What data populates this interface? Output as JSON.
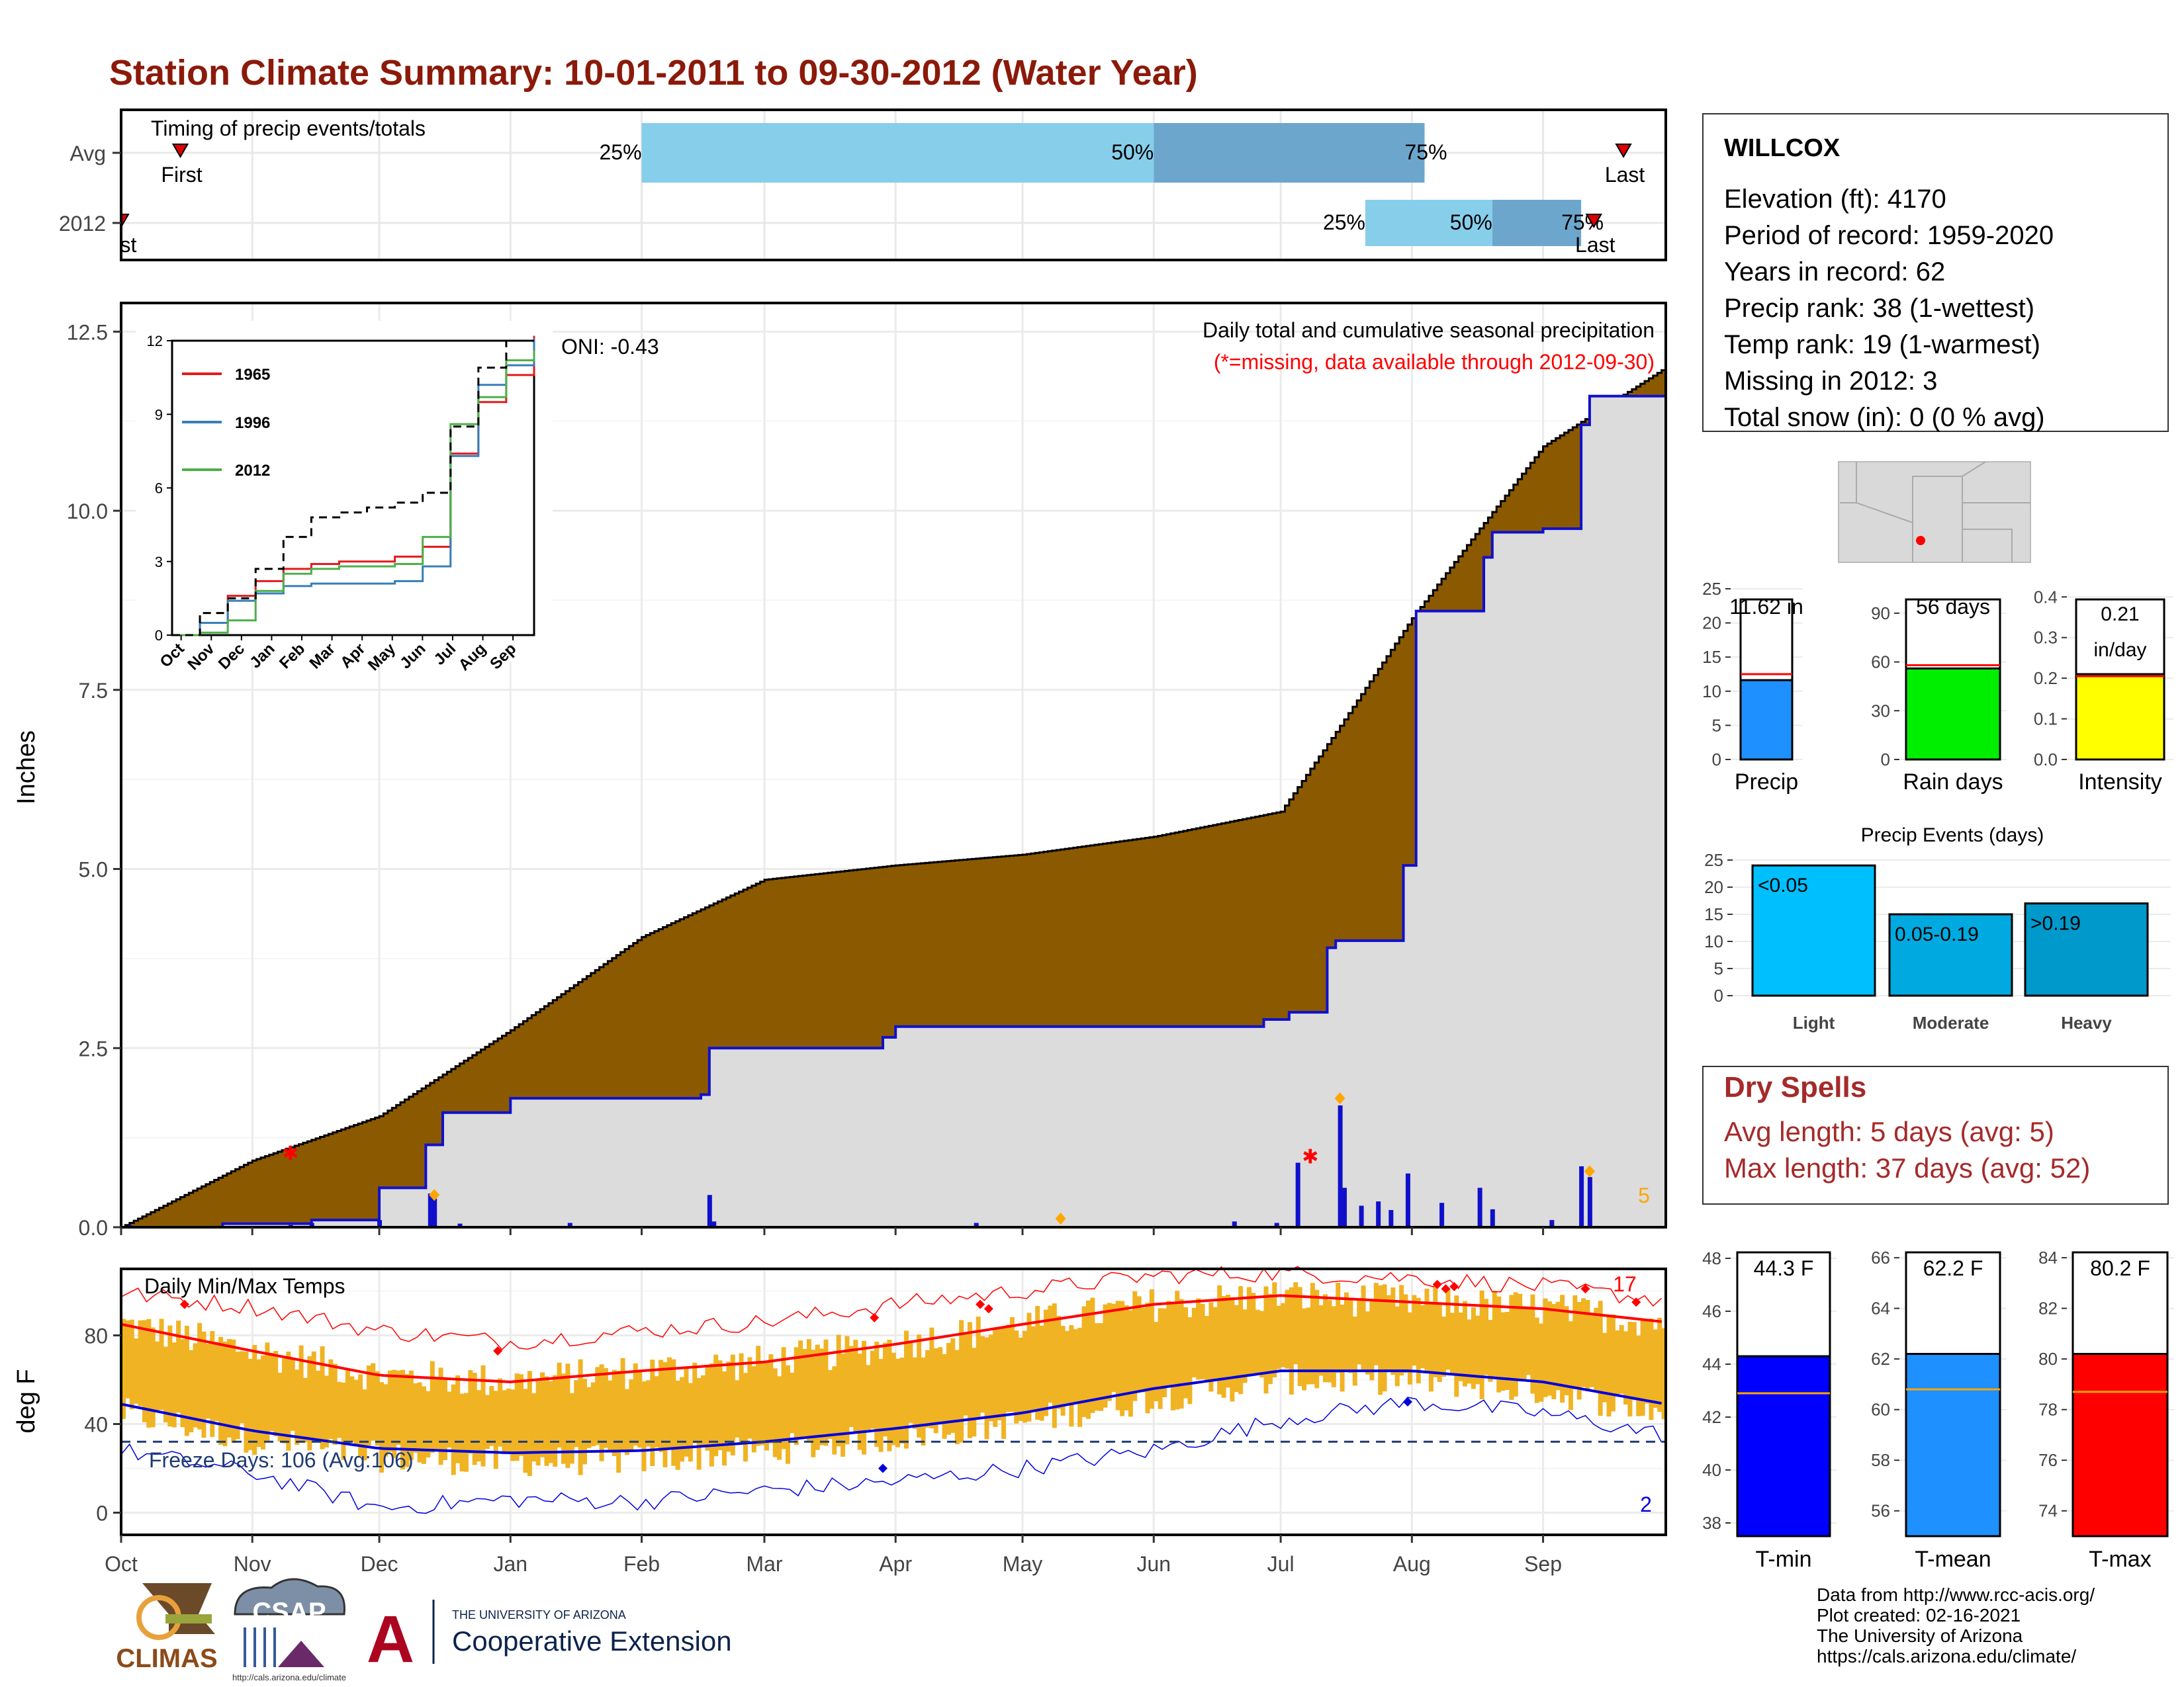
{
  "title": "Station Climate Summary: 10-01-2011 to 09-30-2012 (Water Year)",
  "colors": {
    "title": "#8b1a0a",
    "cumAvg": "#8b5a00",
    "cumYear": "#dcdcdc",
    "yearLine": "#1010cc",
    "daily": "#1010cc",
    "timingLight": "#87ceeb",
    "timingDark": "#6ca6cd",
    "tempBar": "#f0b323",
    "tmax": "#ff0000",
    "tmin": "#0000dd",
    "freeze": "#1f3b73",
    "precipBar": "#1e90ff",
    "raindaysBar": "#00ee00",
    "intensityBar": "#ffff00",
    "light": "#00bfff",
    "moderate": "#00aae0",
    "heavy": "#0099cc",
    "tminBar": "#0000ff",
    "tmeanBar": "#1e90ff",
    "tmaxBar": "#ff0000",
    "drySpell": "#a52a2a"
  },
  "timing": {
    "title": "Timing of precip events/totals",
    "rows": [
      "Avg",
      "2012"
    ],
    "first_label": "First",
    "first_label_2012": "irst",
    "last_label": "Last",
    "pct_labels": [
      "25%",
      "50%",
      "75%"
    ],
    "avg": {
      "first": "2011-10-15",
      "p25": "2012-02-01",
      "p50": "2012-06-01",
      "p75": "2012-08-04",
      "last": "2012-09-20"
    },
    "y2012": {
      "first": "2011-10-01",
      "p25": "2012-07-21",
      "p50": "2012-08-20",
      "p75": "2012-09-10",
      "last": "2012-09-13"
    }
  },
  "main": {
    "ylabel": "Inches",
    "yticks": [
      "0.0",
      "2.5",
      "5.0",
      "7.5",
      "10.0",
      "12.5"
    ],
    "xticks": [
      "Oct",
      "Nov",
      "Dec",
      "Jan",
      "Feb",
      "Mar",
      "Apr",
      "May",
      "Jun",
      "Jul",
      "Aug",
      "Sep"
    ],
    "annotation_title": "Daily total and cumulative seasonal precipitation",
    "annotation_missing": "(*=missing, data available through 2012-09-30)",
    "oni": "ONI: -0.43",
    "count_label": "5"
  },
  "inset": {
    "yticks": [
      "0",
      "3",
      "6",
      "9",
      "12"
    ],
    "xticks": [
      "Oct",
      "Nov",
      "Dec",
      "Jan",
      "Feb",
      "Mar",
      "Apr",
      "May",
      "Jun",
      "Jul",
      "Aug",
      "Sep"
    ],
    "legend": [
      "1965",
      "1996",
      "2012"
    ]
  },
  "temps": {
    "title": "Daily Min/Max Temps",
    "ylabel": "deg F",
    "yticks": [
      "0",
      "40",
      "80"
    ],
    "freeze_label": "Freeze Days: 106 (Avg:106)",
    "max_count": "17",
    "min_count": "2"
  },
  "station": {
    "name": "WILLCOX",
    "lines": [
      "Elevation (ft): 4170",
      "Period of record: 1959-2020",
      "Years in record: 62",
      "Precip rank: 38 (1-wettest)",
      "Temp rank: 19 (1-warmest)",
      "Missing in 2012: 3",
      "Total snow (in): 0 (0 % avg)"
    ]
  },
  "small_bars": [
    {
      "label": "Precip",
      "value_text": "11.62 in",
      "yticks": [
        "0",
        "5",
        "10",
        "15",
        "20",
        "25"
      ]
    },
    {
      "label": "Rain days",
      "value_text": "56 days",
      "yticks": [
        "0",
        "30",
        "60",
        "90"
      ]
    },
    {
      "label": "Intensity",
      "value_text": "0.21\nin/day",
      "value_text_lines": [
        "0.21",
        "in/day"
      ],
      "yticks": [
        "0.0",
        "0.1",
        "0.2",
        "0.3",
        "0.4"
      ]
    }
  ],
  "events": {
    "title": "Precip Events (days)",
    "yticks": [
      "0",
      "5",
      "10",
      "15",
      "20",
      "25"
    ],
    "bars": [
      {
        "label": "Light",
        "inner": "<0.05"
      },
      {
        "label": "Moderate",
        "inner": "0.05-0.19"
      },
      {
        "label": "Heavy",
        "inner": ">0.19"
      }
    ]
  },
  "dry": {
    "title": "Dry Spells",
    "line1": "Avg length: 5 days (avg: 5)",
    "line2": "Max length: 37 days (avg: 52)"
  },
  "temp_bars": [
    {
      "label": "T-min",
      "value_text": "44.3 F",
      "yticks": [
        "38",
        "40",
        "42",
        "44",
        "46",
        "48"
      ]
    },
    {
      "label": "T-mean",
      "value_text": "62.2 F",
      "yticks": [
        "56",
        "58",
        "60",
        "62",
        "64",
        "66"
      ]
    },
    {
      "label": "T-max",
      "value_text": "80.2 F",
      "yticks": [
        "74",
        "76",
        "78",
        "80",
        "82",
        "84"
      ]
    }
  ],
  "footer": {
    "lines": [
      "Data from http://www.rcc-acis.org/",
      "Plot created: 02-16-2021",
      "The University of Arizona",
      "https://cals.arizona.edu/climate/"
    ]
  },
  "logos": {
    "climas": "CLIMAS",
    "csap": "CSAP",
    "csap_url": "http://cals.arizona.edu/climate",
    "ua_small": "THE UNIVERSITY OF ARIZONA",
    "ua_big": "Cooperative Extension",
    "ua_letter": "A"
  },
  "chart_data": [
    {
      "type": "area",
      "title": "Daily total and cumulative seasonal precipitation",
      "ylabel": "Inches",
      "ylim": [
        0,
        12.9
      ],
      "x_range": [
        "2011-10-01",
        "2012-09-30"
      ],
      "series": [
        {
          "name": "avg_cumulative",
          "x": [
            "2011-10-01",
            "2011-11-01",
            "2011-12-01",
            "2012-01-01",
            "2012-02-01",
            "2012-03-01",
            "2012-04-01",
            "2012-05-01",
            "2012-06-01",
            "2012-07-01",
            "2012-07-15",
            "2012-08-01",
            "2012-08-15",
            "2012-09-01",
            "2012-09-30"
          ],
          "values": [
            0.0,
            0.93,
            1.55,
            2.75,
            4.05,
            4.85,
            5.05,
            5.2,
            5.45,
            5.8,
            7.0,
            8.5,
            9.6,
            10.9,
            12.0
          ]
        },
        {
          "name": "2012_cumulative",
          "x": [
            "2011-10-01",
            "2011-10-25",
            "2011-11-15",
            "2011-12-01",
            "2011-12-10",
            "2011-12-12",
            "2011-12-16",
            "2012-01-01",
            "2012-02-15",
            "2012-02-17",
            "2012-03-29",
            "2012-04-01",
            "2012-06-01",
            "2012-06-27",
            "2012-07-03",
            "2012-07-12",
            "2012-07-14",
            "2012-07-30",
            "2012-08-02",
            "2012-08-05",
            "2012-08-18",
            "2012-08-20",
            "2012-09-01",
            "2012-09-10",
            "2012-09-12",
            "2012-09-30"
          ],
          "values": [
            0.0,
            0.05,
            0.1,
            0.55,
            0.55,
            1.15,
            1.6,
            1.8,
            1.85,
            2.5,
            2.65,
            2.8,
            2.8,
            2.9,
            3.0,
            3.9,
            4.0,
            5.05,
            8.6,
            8.6,
            9.35,
            9.7,
            9.75,
            11.2,
            11.6,
            11.62
          ]
        },
        {
          "name": "daily",
          "x": [
            "2011-10-03",
            "2011-11-10",
            "2011-11-15",
            "2011-12-01",
            "2011-12-13",
            "2011-12-14",
            "2011-12-20",
            "2012-01-15",
            "2012-02-17",
            "2012-02-18",
            "2012-04-20",
            "2012-06-20",
            "2012-06-30",
            "2012-07-05",
            "2012-07-15",
            "2012-07-16",
            "2012-07-20",
            "2012-07-24",
            "2012-07-27",
            "2012-07-31",
            "2012-08-08",
            "2012-08-17",
            "2012-08-20",
            "2012-09-03",
            "2012-09-10",
            "2012-09-12"
          ],
          "values": [
            0.03,
            0.03,
            0.06,
            0.1,
            0.47,
            0.4,
            0.05,
            0.06,
            0.45,
            0.08,
            0.06,
            0.08,
            0.06,
            0.9,
            1.7,
            0.55,
            0.3,
            0.36,
            0.24,
            0.75,
            0.34,
            0.55,
            0.25,
            0.1,
            0.85,
            0.7
          ]
        }
      ],
      "inset": {
        "ylim": [
          0,
          12
        ],
        "series": [
          {
            "name": "1965",
            "values": [
              0,
              0.5,
              1.6,
              2.2,
              2.7,
              2.9,
              3.0,
              3.0,
              3.2,
              3.6,
              7.4,
              9.5,
              10.6,
              12.2
            ]
          },
          {
            "name": "1996",
            "values": [
              0,
              0.5,
              1.4,
              1.7,
              2.0,
              2.1,
              2.1,
              2.1,
              2.2,
              2.8,
              7.3,
              10.2,
              11.0,
              12.1
            ]
          },
          {
            "name": "2012",
            "values": [
              0,
              0.1,
              0.6,
              1.8,
              2.5,
              2.7,
              2.8,
              2.8,
              2.9,
              4.0,
              8.6,
              9.7,
              11.2,
              11.6
            ]
          },
          {
            "name": "avg",
            "values": [
              0,
              0.9,
              1.5,
              2.7,
              4.0,
              4.8,
              5.0,
              5.2,
              5.4,
              5.8,
              8.5,
              10.9,
              12.0,
              12.0
            ]
          }
        ]
      }
    },
    {
      "type": "line",
      "title": "Daily Min/Max Temps",
      "ylabel": "deg F",
      "ylim": [
        -10,
        110
      ],
      "x_range": [
        "2011-10-01",
        "2012-09-30"
      ],
      "series": [
        {
          "name": "avg_max",
          "x": [
            "2011-10-01",
            "2011-11-01",
            "2011-12-01",
            "2012-01-01",
            "2012-02-01",
            "2012-03-01",
            "2012-04-01",
            "2012-05-01",
            "2012-06-01",
            "2012-07-01",
            "2012-08-01",
            "2012-09-01",
            "2012-09-30"
          ],
          "values": [
            85,
            73,
            62,
            59,
            64,
            68,
            76,
            85,
            94,
            98,
            95,
            92,
            86
          ]
        },
        {
          "name": "avg_min",
          "x": [
            "2011-10-01",
            "2011-11-01",
            "2011-12-01",
            "2012-01-01",
            "2012-02-01",
            "2012-03-01",
            "2012-04-01",
            "2012-05-01",
            "2012-06-01",
            "2012-07-01",
            "2012-08-01",
            "2012-09-01",
            "2012-09-30"
          ],
          "values": [
            49,
            37,
            29,
            27,
            28,
            32,
            38,
            45,
            56,
            64,
            64,
            59,
            49
          ]
        },
        {
          "name": "record_max",
          "x": [
            "2011-10-01",
            "2011-11-01",
            "2011-12-01",
            "2012-01-01",
            "2012-02-01",
            "2012-03-01",
            "2012-04-01",
            "2012-05-01",
            "2012-06-01",
            "2012-07-01",
            "2012-08-01",
            "2012-09-01",
            "2012-09-30"
          ],
          "values": [
            99,
            93,
            82,
            77,
            82,
            86,
            94,
            100,
            107,
            108,
            106,
            102,
            96
          ]
        },
        {
          "name": "record_min",
          "x": [
            "2011-10-01",
            "2011-11-01",
            "2011-12-01",
            "2012-01-01",
            "2012-02-01",
            "2012-03-01",
            "2012-04-01",
            "2012-05-01",
            "2012-06-01",
            "2012-07-01",
            "2012-08-01",
            "2012-09-01",
            "2012-09-30"
          ],
          "values": [
            28,
            18,
            2,
            6,
            5,
            10,
            14,
            20,
            28,
            42,
            50,
            45,
            35
          ]
        }
      ],
      "freeze_threshold": 32
    },
    {
      "type": "bar",
      "categories": [
        "Precip"
      ],
      "values": [
        11.62
      ],
      "avg": 12.5,
      "ylim": [
        0,
        25
      ]
    },
    {
      "type": "bar",
      "categories": [
        "Rain days"
      ],
      "values": [
        56
      ],
      "avg": 58,
      "ylim": [
        0,
        105
      ]
    },
    {
      "type": "bar",
      "categories": [
        "Intensity"
      ],
      "values": [
        0.21
      ],
      "avg": 0.205,
      "ylim": [
        0,
        0.42
      ]
    },
    {
      "type": "bar",
      "title": "Precip Events (days)",
      "categories": [
        "Light",
        "Moderate",
        "Heavy"
      ],
      "values": [
        24,
        15,
        17
      ],
      "ylim": [
        0,
        25
      ]
    },
    {
      "type": "bar",
      "categories": [
        "T-min"
      ],
      "values": [
        44.3
      ],
      "avg": 42.9,
      "ylim": [
        37.5,
        48.5
      ]
    },
    {
      "type": "bar",
      "categories": [
        "T-mean"
      ],
      "values": [
        62.2
      ],
      "avg": 60.8,
      "ylim": [
        55,
        66.5
      ]
    },
    {
      "type": "bar",
      "categories": [
        "T-max"
      ],
      "values": [
        80.2
      ],
      "avg": 78.7,
      "ylim": [
        73,
        84.5
      ]
    }
  ]
}
